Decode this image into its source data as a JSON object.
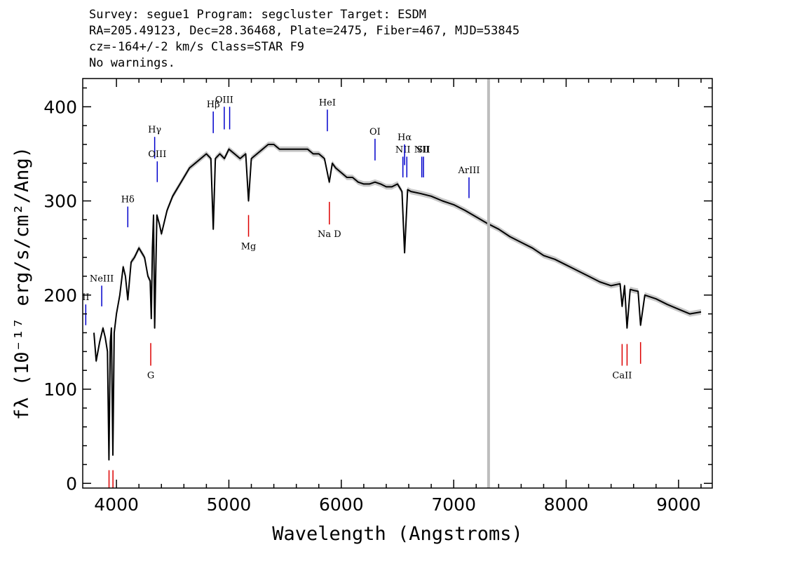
{
  "header": {
    "line1": "Survey: segue1 Program: segcluster Target: ESDM",
    "line2": "RA=205.49123, Dec=28.36468, Plate=2475, Fiber=467, MJD=53845",
    "line3": "cz=-164+/-2 km/s Class=STAR F9",
    "line4": "No warnings."
  },
  "chart_data": {
    "type": "line",
    "xlabel": "Wavelength (Angstroms)",
    "ylabel": "fλ (10⁻¹⁷ erg/s/cm²/Ang)",
    "xlim": [
      3700,
      9300
    ],
    "ylim": [
      -5,
      430
    ],
    "x_ticks": [
      4000,
      5000,
      6000,
      7000,
      8000,
      9000
    ],
    "y_ticks": [
      0,
      100,
      200,
      300,
      400
    ],
    "grid": false,
    "series": [
      {
        "color": "#000000",
        "x": [
          3800,
          3820,
          3850,
          3880,
          3900,
          3920,
          3933,
          3945,
          3955,
          3968,
          3980,
          4000,
          4030,
          4060,
          4080,
          4101,
          4130,
          4160,
          4200,
          4250,
          4280,
          4300,
          4310,
          4320,
          4330,
          4340,
          4360,
          4383,
          4400,
          4450,
          4500,
          4550,
          4600,
          4650,
          4700,
          4750,
          4800,
          4840,
          4861,
          4880,
          4920,
          4960,
          5000,
          5050,
          5100,
          5150,
          5175,
          5200,
          5250,
          5300,
          5350,
          5400,
          5450,
          5500,
          5550,
          5600,
          5650,
          5700,
          5750,
          5800,
          5850,
          5893,
          5920,
          5950,
          6000,
          6050,
          6100,
          6150,
          6200,
          6250,
          6300,
          6350,
          6400,
          6450,
          6500,
          6540,
          6563,
          6590,
          6620,
          6700,
          6800,
          6900,
          7000,
          7100,
          7200,
          7300,
          7400,
          7500,
          7600,
          7700,
          7800,
          7900,
          8000,
          8100,
          8200,
          8300,
          8400,
          8480,
          8498,
          8520,
          8542,
          8570,
          8600,
          8640,
          8662,
          8700,
          8800,
          8900,
          9000,
          9100,
          9200
        ],
        "y": [
          160,
          130,
          150,
          165,
          155,
          140,
          25,
          150,
          165,
          30,
          160,
          180,
          200,
          230,
          220,
          195,
          235,
          240,
          250,
          240,
          220,
          215,
          175,
          250,
          285,
          165,
          285,
          275,
          265,
          290,
          305,
          315,
          325,
          335,
          340,
          345,
          350,
          345,
          270,
          345,
          350,
          345,
          355,
          350,
          345,
          350,
          300,
          345,
          350,
          355,
          360,
          360,
          355,
          355,
          355,
          355,
          355,
          355,
          350,
          350,
          345,
          320,
          340,
          335,
          330,
          325,
          325,
          320,
          318,
          318,
          320,
          318,
          315,
          315,
          318,
          310,
          245,
          312,
          310,
          308,
          305,
          300,
          296,
          290,
          283,
          276,
          270,
          262,
          256,
          250,
          242,
          238,
          232,
          226,
          220,
          214,
          210,
          212,
          188,
          210,
          165,
          206,
          205,
          204,
          168,
          200,
          196,
          190,
          185,
          180,
          182
        ]
      }
    ],
    "error_band_color": "#c0c0c0",
    "marker_line": {
      "x": 7310,
      "color": "#bdbdbd"
    },
    "emission_lines": [
      {
        "label": "II",
        "x": 3727,
        "y0": 168,
        "y1": 190
      },
      {
        "label": "NeIII",
        "x": 3869,
        "y0": 188,
        "y1": 210
      },
      {
        "label": "Hδ",
        "x": 4101,
        "y0": 272,
        "y1": 294
      },
      {
        "label": "Hγ",
        "x": 4340,
        "y0": 345,
        "y1": 368
      },
      {
        "label": "OIII",
        "x": 4363,
        "y0": 320,
        "y1": 342
      },
      {
        "label": "Hβ",
        "x": 4861,
        "y0": 372,
        "y1": 395
      },
      {
        "label": "OIII",
        "x": 4959,
        "y0": 376,
        "y1": 400
      },
      {
        "label": "",
        "x": 5007,
        "y0": 376,
        "y1": 400
      },
      {
        "label": "HeI",
        "x": 5876,
        "y0": 374,
        "y1": 397
      },
      {
        "label": "OI",
        "x": 6300,
        "y0": 343,
        "y1": 366
      },
      {
        "label": "NII",
        "x": 6548,
        "y0": 325,
        "y1": 347
      },
      {
        "label": "Hα",
        "x": 6563,
        "y0": 338,
        "y1": 360
      },
      {
        "label": "",
        "x": 6583,
        "y0": 325,
        "y1": 347
      },
      {
        "label": "NII",
        "x": 6716,
        "y0": 325,
        "y1": 347
      },
      {
        "label": "SII",
        "x": 6731,
        "y0": 325,
        "y1": 347
      },
      {
        "label": "ArIII",
        "x": 7136,
        "y0": 303,
        "y1": 325
      }
    ],
    "absorption_lines": [
      {
        "label": "",
        "x": 3934,
        "y0": -5,
        "y1": 14
      },
      {
        "label": "",
        "x": 3969,
        "y0": -5,
        "y1": 14
      },
      {
        "label": "G",
        "x": 4305,
        "y0": 125,
        "y1": 149
      },
      {
        "label": "Mg",
        "x": 5175,
        "y0": 262,
        "y1": 285
      },
      {
        "label": "Na D",
        "x": 5894,
        "y0": 275,
        "y1": 299
      },
      {
        "label": "CaII",
        "x": 8498,
        "y0": 125,
        "y1": 148
      },
      {
        "label": "",
        "x": 8542,
        "y0": 125,
        "y1": 148
      },
      {
        "label": "",
        "x": 8662,
        "y0": 127,
        "y1": 150
      }
    ],
    "line_colors": {
      "emission": "#0000cc",
      "absorption": "#dd0000"
    }
  }
}
